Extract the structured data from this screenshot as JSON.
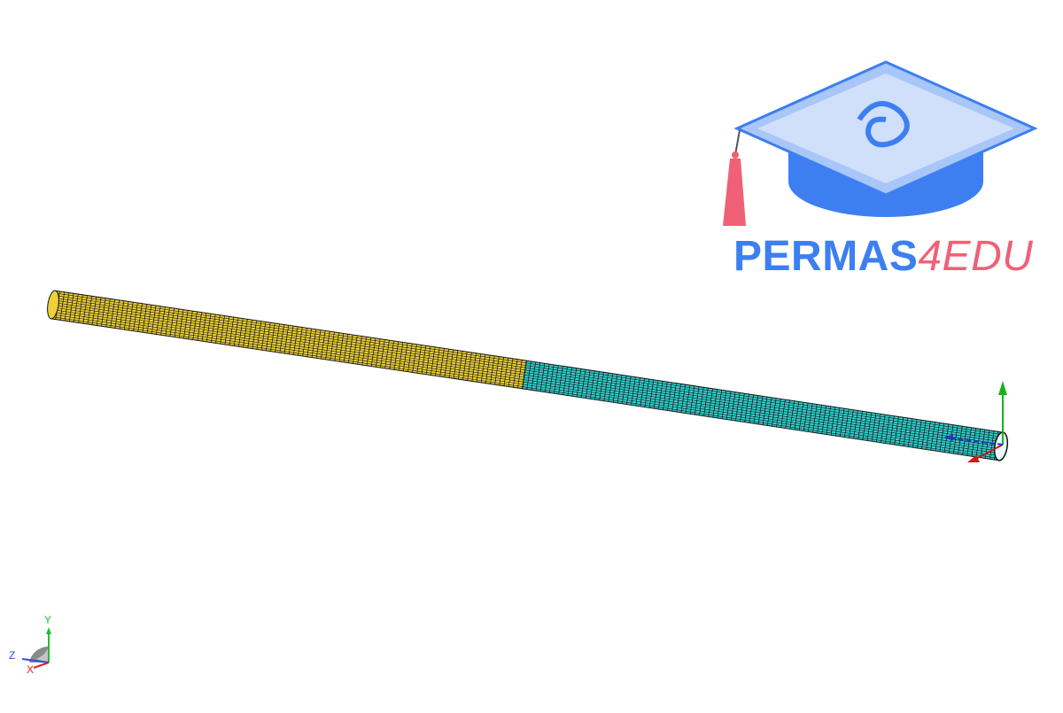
{
  "logo": {
    "name_main": "PERMAS",
    "name_accent": "4EDU",
    "brand_color": "#3d7ff0",
    "accent_color": "#f06076"
  },
  "model": {
    "segment_1_color": "#ecd138",
    "segment_2_color": "#30d2d0",
    "mesh_color": "#111111"
  },
  "local_axes": {
    "x_color": "#d01818",
    "y_color": "#18b020",
    "z_color": "#2038c8"
  },
  "triad": {
    "x_label": "X",
    "y_label": "Y",
    "z_label": "Z",
    "x_color": "#e02020",
    "y_color": "#20c030",
    "z_color": "#3050e0"
  }
}
